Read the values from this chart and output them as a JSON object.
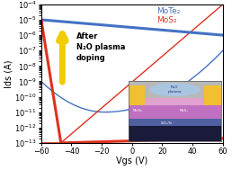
{
  "xlabel": "Vgs (V)",
  "ylabel": "Ids (A)",
  "xlim": [
    -60,
    60
  ],
  "ylim_log": [
    -13,
    -4
  ],
  "mote2_color": "#4472c4",
  "mos2_color": "#e03020",
  "annotation_text": "After\nN₂O plasma\ndoping",
  "legend_mote2": "MoTe₂",
  "legend_mos2": "MoS₂",
  "arrow_color": "#f0cc00",
  "xticks": [
    -60,
    -40,
    -20,
    0,
    20,
    40,
    60
  ]
}
